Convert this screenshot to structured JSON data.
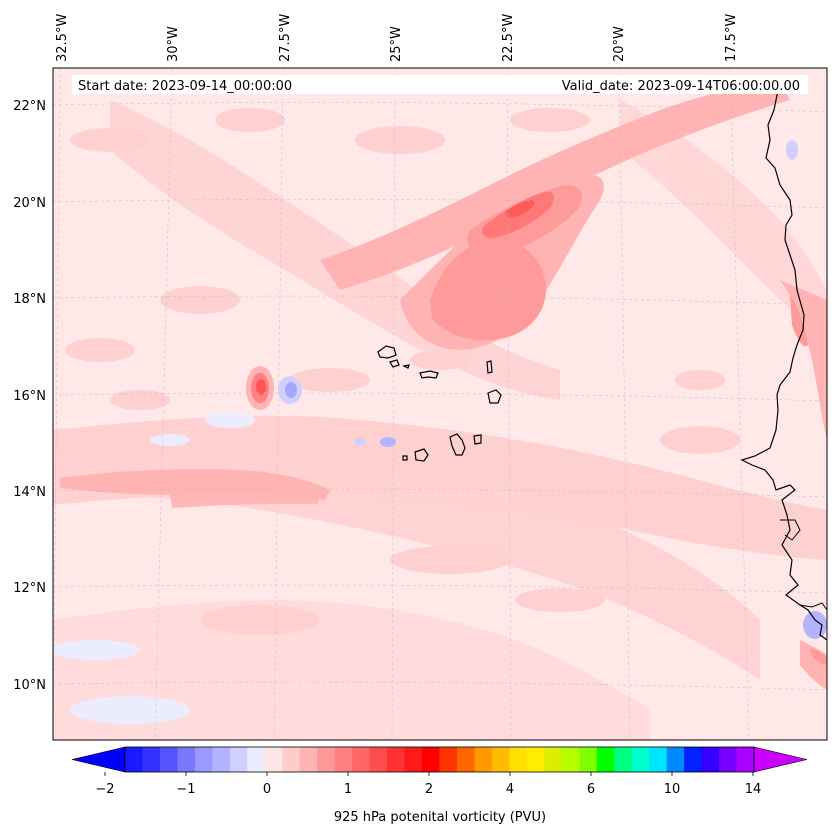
{
  "map": {
    "start_label": "Start date: 2023-09-14_00:00:00",
    "valid_label": "Valid_date: 2023-09-14T06:00:00.00",
    "lon_labels": [
      "32.5°W",
      "30°W",
      "27.5°W",
      "25°W",
      "22.5°W",
      "20°W",
      "17.5°W"
    ],
    "lat_labels": [
      "22°N",
      "20°N",
      "18°N",
      "16°N",
      "14°N",
      "12°N",
      "10°N"
    ],
    "background_color": "#ffe8e8",
    "coastline_color": "#000000"
  },
  "colorbar": {
    "title": "925 hPa potenital vorticity (PVU)",
    "tick_labels": [
      "−2",
      "−1",
      "0",
      "1",
      "2",
      "4",
      "6",
      "10",
      "14"
    ],
    "min_color": "#0000ff",
    "max_color": "#cc00ff",
    "colors": [
      "#1a1aff",
      "#3333ff",
      "#5555ff",
      "#7777ff",
      "#9999ff",
      "#b3b3ff",
      "#d0d0ff",
      "#ececff",
      "#ffe6e6",
      "#ffcccc",
      "#ffb3b3",
      "#ff9999",
      "#ff7f7f",
      "#ff6666",
      "#ff4d4d",
      "#ff3333",
      "#ff1a1a",
      "#ff0000",
      "#ff3300",
      "#ff6600",
      "#ff9900",
      "#ffbb00",
      "#ffe000",
      "#ffee00",
      "#d9ee00",
      "#b3ff00",
      "#80ff00",
      "#00ff00",
      "#00ff80",
      "#00ffcc",
      "#00e5ff",
      "#0088ff",
      "#0022ff",
      "#3300ff",
      "#7700ff",
      "#aa00ff"
    ]
  }
}
